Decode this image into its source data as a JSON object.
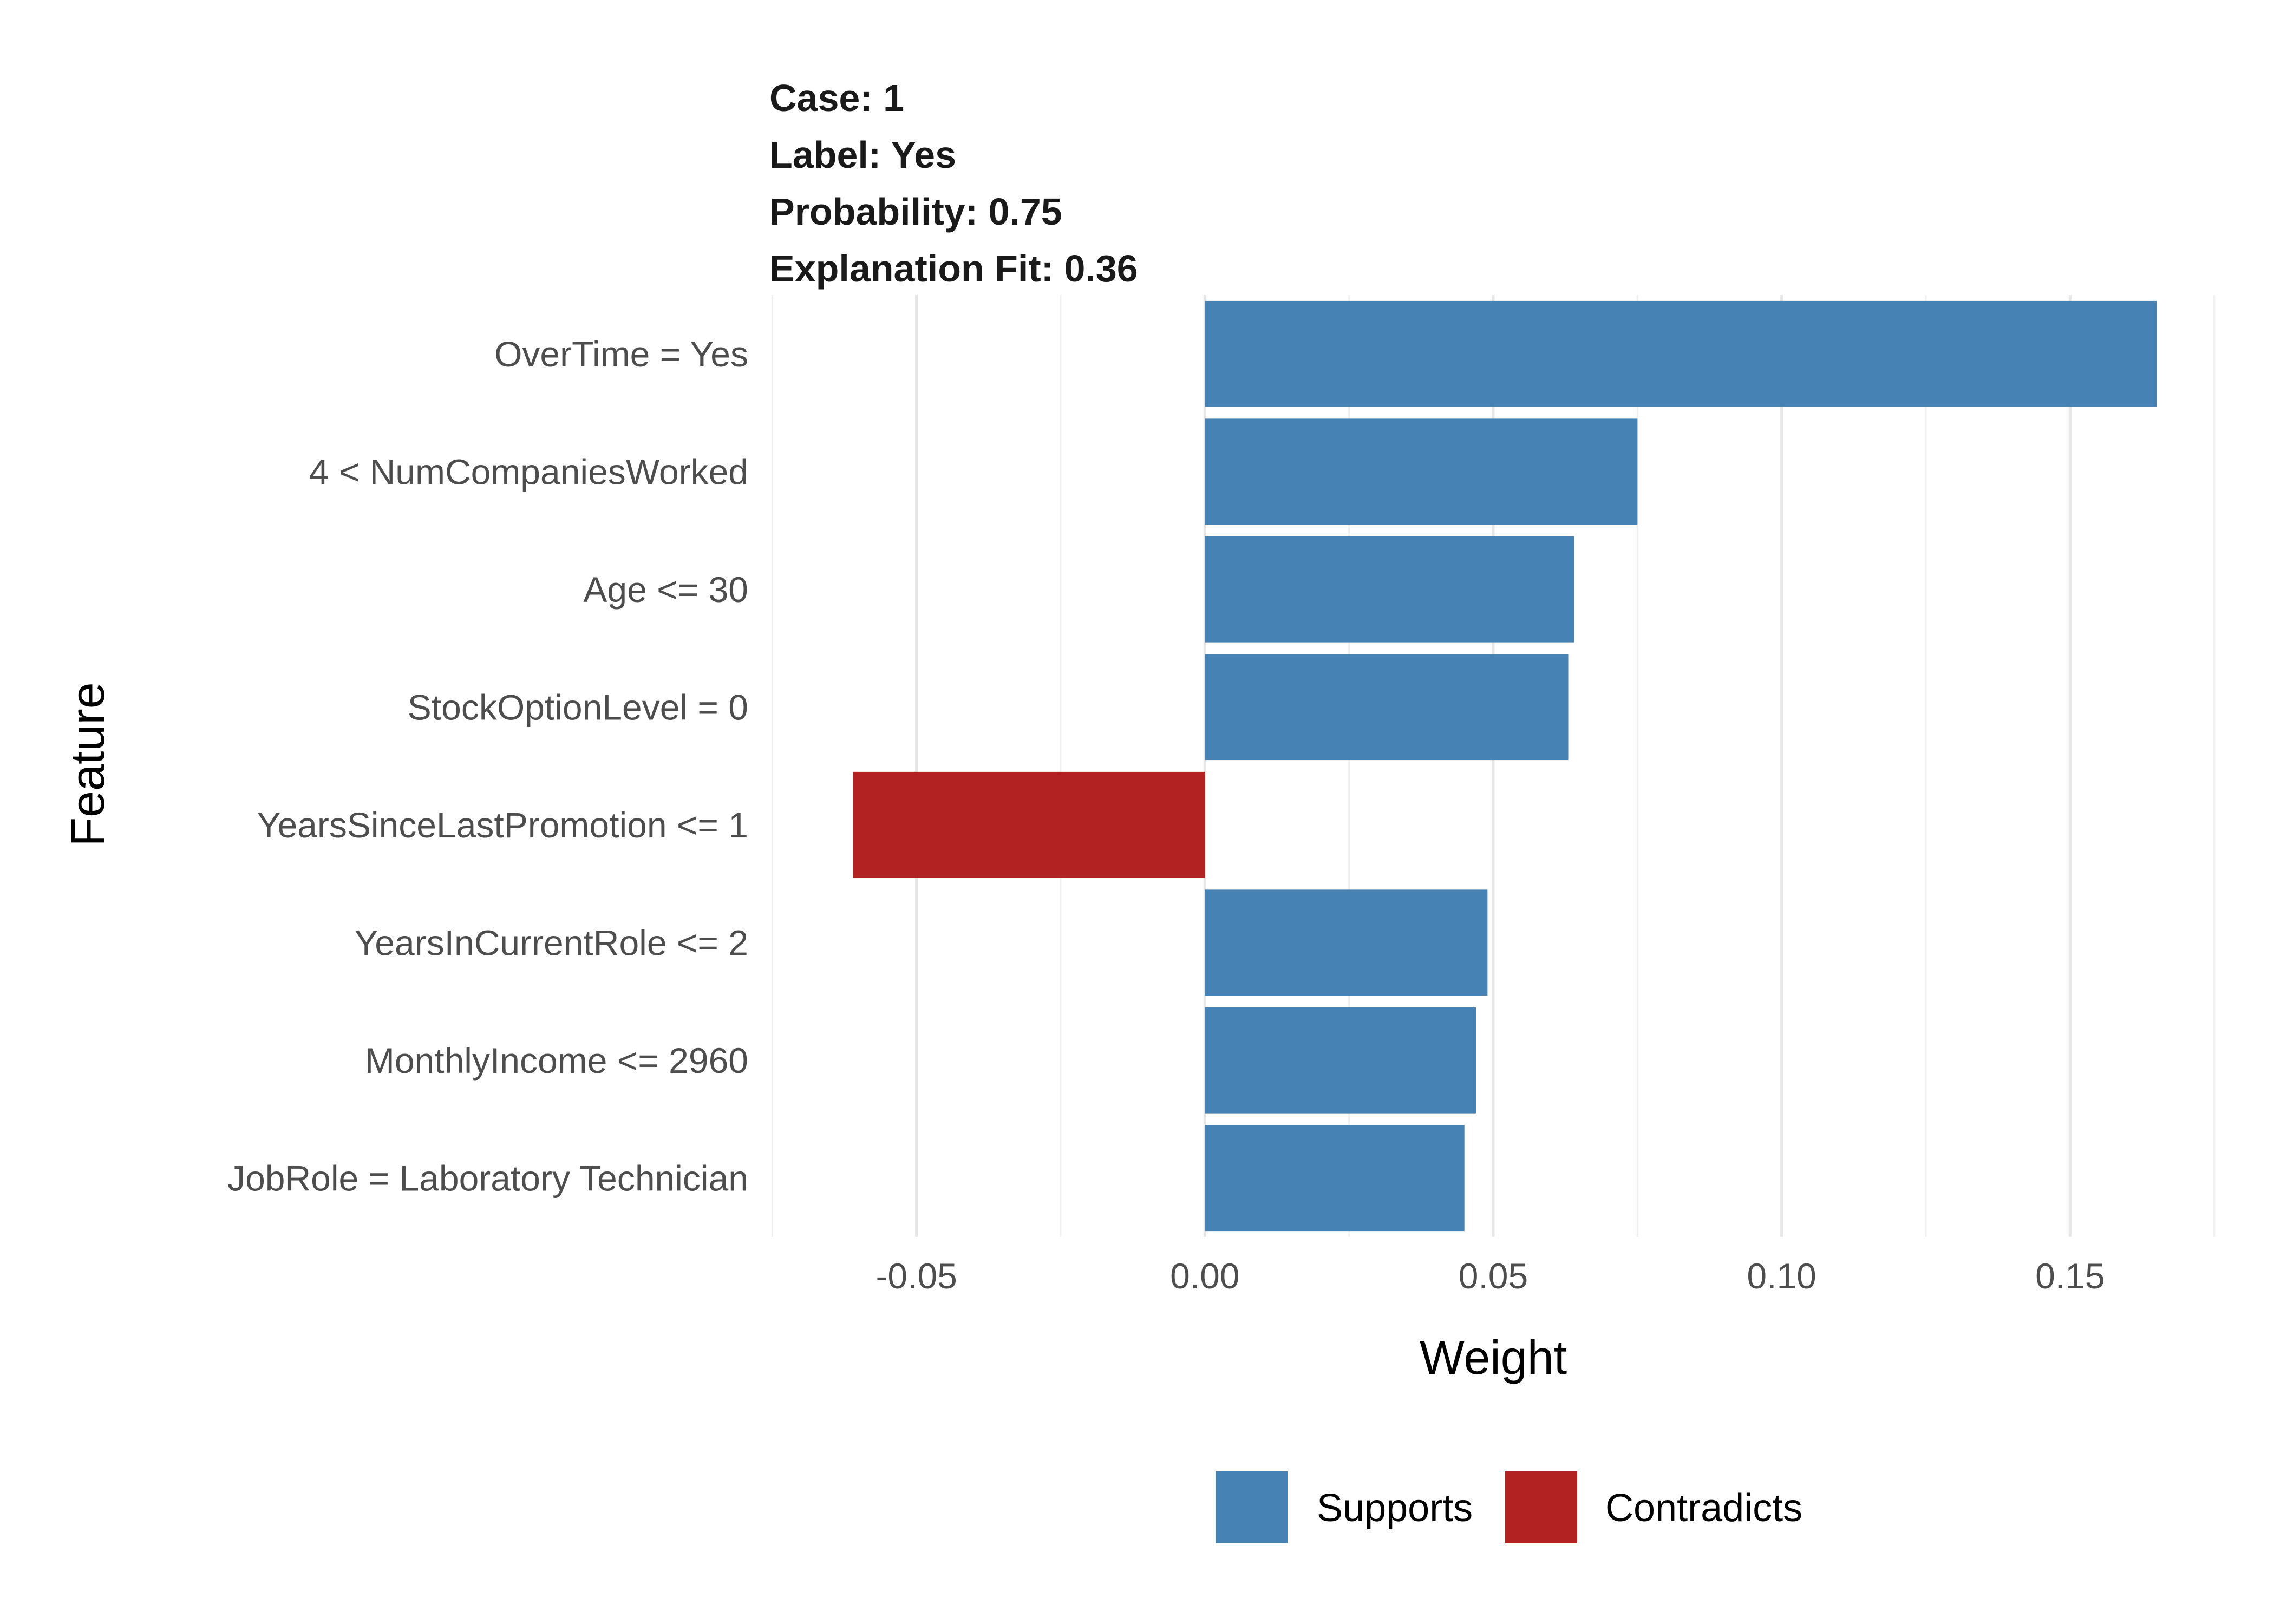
{
  "title_lines": [
    "Case: 1",
    "Label: Yes",
    "Probability: 0.75",
    "Explanation Fit: 0.36"
  ],
  "chart_data": {
    "type": "bar",
    "orientation": "horizontal",
    "categories": [
      "OverTime = Yes",
      "4 < NumCompaniesWorked",
      "Age <= 30",
      "StockOptionLevel = 0",
      "YearsSinceLastPromotion <= 1",
      "YearsInCurrentRole <= 2",
      "MonthlyIncome <= 2960",
      "JobRole = Laboratory Technician"
    ],
    "values": [
      0.165,
      0.075,
      0.064,
      0.063,
      -0.061,
      0.049,
      0.047,
      0.045
    ],
    "groups": [
      "Supports",
      "Supports",
      "Supports",
      "Supports",
      "Contradicts",
      "Supports",
      "Supports",
      "Supports"
    ],
    "xlabel": "Weight",
    "ylabel": "Feature",
    "xlim": [
      -0.0755,
      0.1755
    ],
    "x_ticks": [
      -0.05,
      0.0,
      0.05,
      0.1,
      0.15
    ],
    "x_tick_labels": [
      "-0.05",
      "0.00",
      "0.05",
      "0.10",
      "0.15"
    ],
    "grid": true,
    "legend": {
      "position": "bottom",
      "entries": [
        {
          "name": "Supports",
          "color": "#4682B4"
        },
        {
          "name": "Contradicts",
          "color": "#B22222"
        }
      ]
    }
  }
}
